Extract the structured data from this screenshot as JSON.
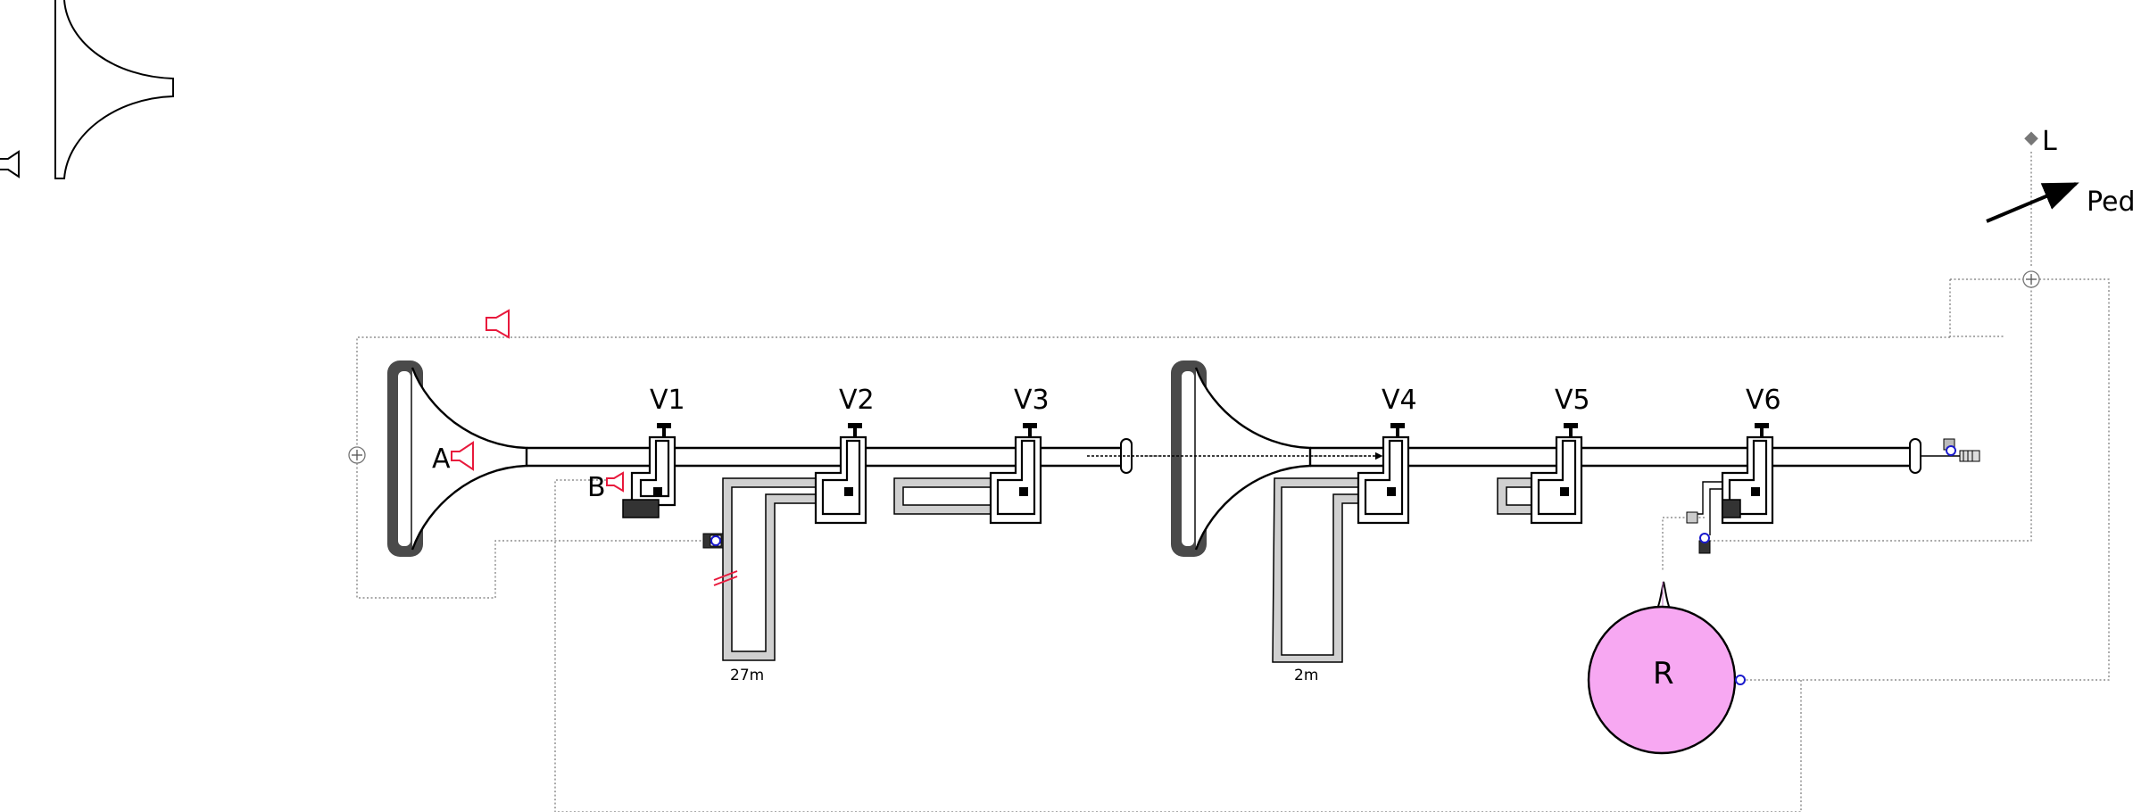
{
  "labels": {
    "v1": "V1",
    "v2": "V2",
    "v3": "V3",
    "v4": "V4",
    "v5": "V5",
    "v6": "V6",
    "a": "A",
    "b": "B",
    "r": "R",
    "l": "L",
    "ped": "Ped"
  },
  "lengths": {
    "tube1": "27m",
    "tube2": "2m"
  },
  "colors": {
    "reservoir": "#f7a8f2",
    "sensor": "#e8193c",
    "valve_indicator": "#1a1acc",
    "flange": "#4a4a4a",
    "dotted_line": "#777777"
  },
  "icons": [
    "horn-icon",
    "speaker-icon",
    "speaker-icon-a",
    "speaker-icon-b",
    "sum-icon",
    "lamp-icon",
    "pedal-arrow-icon"
  ]
}
